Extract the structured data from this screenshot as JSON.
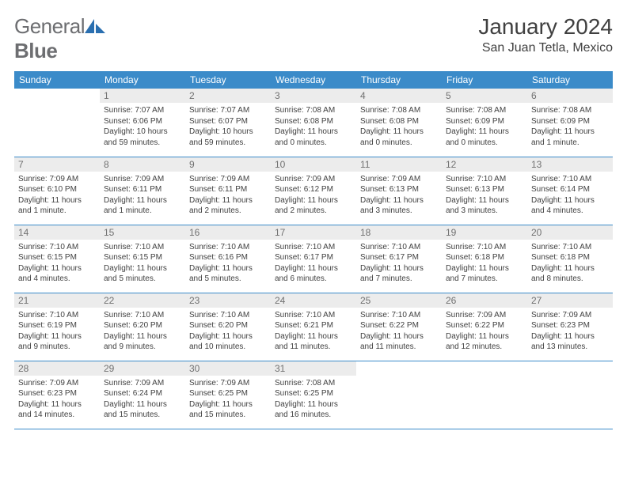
{
  "brand": {
    "part1": "General",
    "part2": "Blue"
  },
  "title": "January 2024",
  "location": "San Juan Tetla, Mexico",
  "colors": {
    "header_bg": "#3b8bc9",
    "header_text": "#ffffff",
    "daynum_bg": "#ececec",
    "daynum_text": "#707070",
    "body_text": "#404040",
    "brand_text": "#6d6e71",
    "row_border": "#3b8bc9",
    "logo_fill": "#2a6fb0"
  },
  "weekdays": [
    "Sunday",
    "Monday",
    "Tuesday",
    "Wednesday",
    "Thursday",
    "Friday",
    "Saturday"
  ],
  "weeks": [
    [
      {
        "n": "",
        "lines": [
          "",
          "",
          "",
          ""
        ]
      },
      {
        "n": "1",
        "lines": [
          "Sunrise: 7:07 AM",
          "Sunset: 6:06 PM",
          "Daylight: 10 hours",
          "and 59 minutes."
        ]
      },
      {
        "n": "2",
        "lines": [
          "Sunrise: 7:07 AM",
          "Sunset: 6:07 PM",
          "Daylight: 10 hours",
          "and 59 minutes."
        ]
      },
      {
        "n": "3",
        "lines": [
          "Sunrise: 7:08 AM",
          "Sunset: 6:08 PM",
          "Daylight: 11 hours",
          "and 0 minutes."
        ]
      },
      {
        "n": "4",
        "lines": [
          "Sunrise: 7:08 AM",
          "Sunset: 6:08 PM",
          "Daylight: 11 hours",
          "and 0 minutes."
        ]
      },
      {
        "n": "5",
        "lines": [
          "Sunrise: 7:08 AM",
          "Sunset: 6:09 PM",
          "Daylight: 11 hours",
          "and 0 minutes."
        ]
      },
      {
        "n": "6",
        "lines": [
          "Sunrise: 7:08 AM",
          "Sunset: 6:09 PM",
          "Daylight: 11 hours",
          "and 1 minute."
        ]
      }
    ],
    [
      {
        "n": "7",
        "lines": [
          "Sunrise: 7:09 AM",
          "Sunset: 6:10 PM",
          "Daylight: 11 hours",
          "and 1 minute."
        ]
      },
      {
        "n": "8",
        "lines": [
          "Sunrise: 7:09 AM",
          "Sunset: 6:11 PM",
          "Daylight: 11 hours",
          "and 1 minute."
        ]
      },
      {
        "n": "9",
        "lines": [
          "Sunrise: 7:09 AM",
          "Sunset: 6:11 PM",
          "Daylight: 11 hours",
          "and 2 minutes."
        ]
      },
      {
        "n": "10",
        "lines": [
          "Sunrise: 7:09 AM",
          "Sunset: 6:12 PM",
          "Daylight: 11 hours",
          "and 2 minutes."
        ]
      },
      {
        "n": "11",
        "lines": [
          "Sunrise: 7:09 AM",
          "Sunset: 6:13 PM",
          "Daylight: 11 hours",
          "and 3 minutes."
        ]
      },
      {
        "n": "12",
        "lines": [
          "Sunrise: 7:10 AM",
          "Sunset: 6:13 PM",
          "Daylight: 11 hours",
          "and 3 minutes."
        ]
      },
      {
        "n": "13",
        "lines": [
          "Sunrise: 7:10 AM",
          "Sunset: 6:14 PM",
          "Daylight: 11 hours",
          "and 4 minutes."
        ]
      }
    ],
    [
      {
        "n": "14",
        "lines": [
          "Sunrise: 7:10 AM",
          "Sunset: 6:15 PM",
          "Daylight: 11 hours",
          "and 4 minutes."
        ]
      },
      {
        "n": "15",
        "lines": [
          "Sunrise: 7:10 AM",
          "Sunset: 6:15 PM",
          "Daylight: 11 hours",
          "and 5 minutes."
        ]
      },
      {
        "n": "16",
        "lines": [
          "Sunrise: 7:10 AM",
          "Sunset: 6:16 PM",
          "Daylight: 11 hours",
          "and 5 minutes."
        ]
      },
      {
        "n": "17",
        "lines": [
          "Sunrise: 7:10 AM",
          "Sunset: 6:17 PM",
          "Daylight: 11 hours",
          "and 6 minutes."
        ]
      },
      {
        "n": "18",
        "lines": [
          "Sunrise: 7:10 AM",
          "Sunset: 6:17 PM",
          "Daylight: 11 hours",
          "and 7 minutes."
        ]
      },
      {
        "n": "19",
        "lines": [
          "Sunrise: 7:10 AM",
          "Sunset: 6:18 PM",
          "Daylight: 11 hours",
          "and 7 minutes."
        ]
      },
      {
        "n": "20",
        "lines": [
          "Sunrise: 7:10 AM",
          "Sunset: 6:18 PM",
          "Daylight: 11 hours",
          "and 8 minutes."
        ]
      }
    ],
    [
      {
        "n": "21",
        "lines": [
          "Sunrise: 7:10 AM",
          "Sunset: 6:19 PM",
          "Daylight: 11 hours",
          "and 9 minutes."
        ]
      },
      {
        "n": "22",
        "lines": [
          "Sunrise: 7:10 AM",
          "Sunset: 6:20 PM",
          "Daylight: 11 hours",
          "and 9 minutes."
        ]
      },
      {
        "n": "23",
        "lines": [
          "Sunrise: 7:10 AM",
          "Sunset: 6:20 PM",
          "Daylight: 11 hours",
          "and 10 minutes."
        ]
      },
      {
        "n": "24",
        "lines": [
          "Sunrise: 7:10 AM",
          "Sunset: 6:21 PM",
          "Daylight: 11 hours",
          "and 11 minutes."
        ]
      },
      {
        "n": "25",
        "lines": [
          "Sunrise: 7:10 AM",
          "Sunset: 6:22 PM",
          "Daylight: 11 hours",
          "and 11 minutes."
        ]
      },
      {
        "n": "26",
        "lines": [
          "Sunrise: 7:09 AM",
          "Sunset: 6:22 PM",
          "Daylight: 11 hours",
          "and 12 minutes."
        ]
      },
      {
        "n": "27",
        "lines": [
          "Sunrise: 7:09 AM",
          "Sunset: 6:23 PM",
          "Daylight: 11 hours",
          "and 13 minutes."
        ]
      }
    ],
    [
      {
        "n": "28",
        "lines": [
          "Sunrise: 7:09 AM",
          "Sunset: 6:23 PM",
          "Daylight: 11 hours",
          "and 14 minutes."
        ]
      },
      {
        "n": "29",
        "lines": [
          "Sunrise: 7:09 AM",
          "Sunset: 6:24 PM",
          "Daylight: 11 hours",
          "and 15 minutes."
        ]
      },
      {
        "n": "30",
        "lines": [
          "Sunrise: 7:09 AM",
          "Sunset: 6:25 PM",
          "Daylight: 11 hours",
          "and 15 minutes."
        ]
      },
      {
        "n": "31",
        "lines": [
          "Sunrise: 7:08 AM",
          "Sunset: 6:25 PM",
          "Daylight: 11 hours",
          "and 16 minutes."
        ]
      },
      {
        "n": "",
        "lines": [
          "",
          "",
          "",
          ""
        ]
      },
      {
        "n": "",
        "lines": [
          "",
          "",
          "",
          ""
        ]
      },
      {
        "n": "",
        "lines": [
          "",
          "",
          "",
          ""
        ]
      }
    ]
  ]
}
